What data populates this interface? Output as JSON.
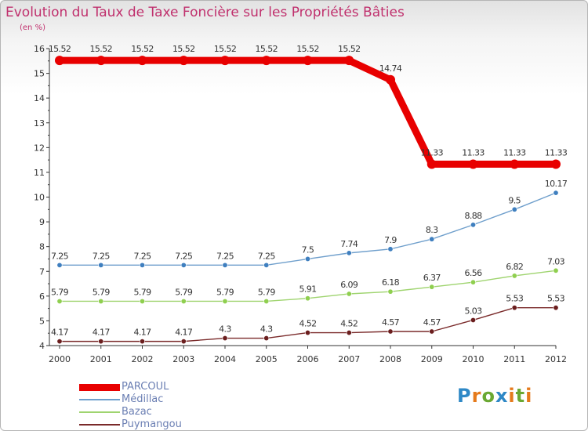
{
  "title": "Evolution du Taux de Taxe Foncière sur les Propriétés Bâties",
  "subtitle": "(en %)",
  "logo": {
    "text": "Proxiti",
    "letters": [
      {
        "ch": "P",
        "color": "#2e88c6"
      },
      {
        "ch": "r",
        "color": "#e57a1c"
      },
      {
        "ch": "o",
        "color": "#6aa832"
      },
      {
        "ch": "x",
        "color": "#2e88c6"
      },
      {
        "ch": "i",
        "color": "#e57a1c"
      },
      {
        "ch": "t",
        "color": "#6aa832"
      },
      {
        "ch": "i",
        "color": "#e57a1c"
      }
    ]
  },
  "chart_data": {
    "type": "line",
    "title": "Evolution du Taux de Taxe Foncière sur les Propriétés Bâties",
    "ylabel": "(en %)",
    "xlabel": "",
    "x": [
      "2000",
      "2001",
      "2002",
      "2003",
      "2004",
      "2005",
      "2006",
      "2007",
      "2008",
      "2009",
      "2010",
      "2011",
      "2012"
    ],
    "ylim": [
      4,
      16
    ],
    "yticks": [
      "4",
      "5",
      "6",
      "7",
      "8",
      "9",
      "10",
      "11",
      "12",
      "13",
      "14",
      "15",
      "16"
    ],
    "grid": false,
    "legend_position": "bottom-left",
    "series": [
      {
        "name": "PARCOUL",
        "color": "#e80000",
        "marker_color": "#e80000",
        "values": [
          15.52,
          15.52,
          15.52,
          15.52,
          15.52,
          15.52,
          15.52,
          15.52,
          14.74,
          11.33,
          11.33,
          11.33,
          11.33
        ],
        "labels": [
          "15.52",
          "15.52",
          "15.52",
          "15.52",
          "15.52",
          "15.52",
          "15.52",
          "15.52",
          "14.74",
          "11.33",
          "11.33",
          "11.33",
          "11.33"
        ]
      },
      {
        "name": "Médillac",
        "color": "#6f9fcc",
        "marker_color": "#3f7fbf",
        "values": [
          7.25,
          7.25,
          7.25,
          7.25,
          7.25,
          7.25,
          7.5,
          7.74,
          7.9,
          8.3,
          8.88,
          9.5,
          10.17
        ],
        "labels": [
          "7.25",
          "7.25",
          "7.25",
          "7.25",
          "7.25",
          "7.25",
          "7.5",
          "7.74",
          "7.9",
          "8.3",
          "8.88",
          "9.5",
          "10.17"
        ]
      },
      {
        "name": "Bazac",
        "color": "#9fd46f",
        "marker_color": "#8fcf4f",
        "values": [
          5.79,
          5.79,
          5.79,
          5.79,
          5.79,
          5.79,
          5.91,
          6.09,
          6.18,
          6.37,
          6.56,
          6.82,
          7.03
        ],
        "labels": [
          "5.79",
          "5.79",
          "5.79",
          "5.79",
          "5.79",
          "5.79",
          "5.91",
          "6.09",
          "6.18",
          "6.37",
          "6.56",
          "6.82",
          "7.03"
        ]
      },
      {
        "name": "Puymangou",
        "color": "#7a2a2a",
        "marker_color": "#6b1e1e",
        "values": [
          4.17,
          4.17,
          4.17,
          4.17,
          4.3,
          4.3,
          4.52,
          4.52,
          4.57,
          4.57,
          5.03,
          5.53,
          5.53
        ],
        "labels": [
          "4.17",
          "4.17",
          "4.17",
          "4.17",
          "4.3",
          "4.3",
          "4.52",
          "4.52",
          "4.57",
          "4.57",
          "5.03",
          "5.53",
          "5.53"
        ]
      }
    ]
  }
}
